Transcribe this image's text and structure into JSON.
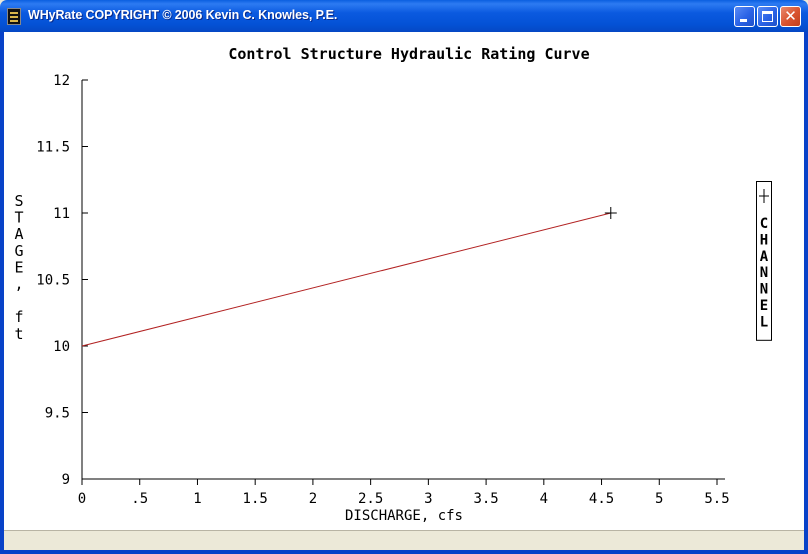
{
  "window": {
    "title": "WHyRate COPYRIGHT © 2006 Kevin C. Knowles, P.E.",
    "buttons": {
      "minimize": "minimize-icon",
      "maximize": "maximize-icon",
      "close": "close-icon"
    }
  },
  "chart_data": {
    "type": "line",
    "title": "Control Structure Hydraulic Rating Curve",
    "xlabel": "DISCHARGE, cfs",
    "ylabel": "STAGE, ft",
    "xlim": [
      0,
      5.5
    ],
    "ylim": [
      9,
      12
    ],
    "x_ticks": [
      0,
      0.5,
      1,
      1.5,
      2,
      2.5,
      3,
      3.5,
      4,
      4.5,
      5,
      5.5
    ],
    "x_tick_labels": [
      "0",
      ".5",
      "1",
      "1.5",
      "2",
      "2.5",
      "3",
      "3.5",
      "4",
      "4.5",
      "5",
      "5.5"
    ],
    "y_ticks": [
      9,
      9.5,
      10,
      10.5,
      11,
      11.5,
      12
    ],
    "y_tick_labels": [
      "9",
      "9.5",
      "10",
      "10.5",
      "11",
      "11.5",
      "12"
    ],
    "grid": false,
    "legend": {
      "position": "right",
      "marker": "+"
    },
    "series": [
      {
        "name": "CHANNEL",
        "color": "#c0504d",
        "marker": "+",
        "x": [
          0,
          4.58
        ],
        "y": [
          10,
          11
        ]
      }
    ]
  }
}
